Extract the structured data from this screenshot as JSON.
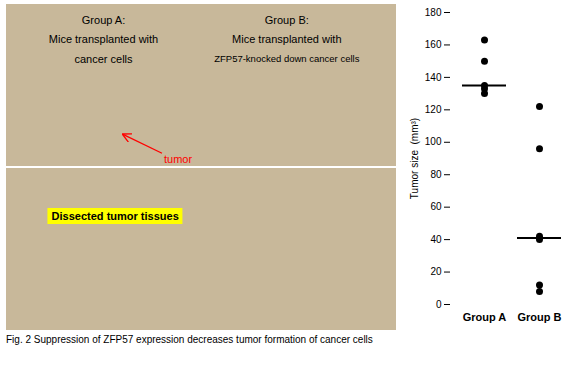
{
  "chart_data": {
    "type": "scatter",
    "categories": [
      "Group A",
      "Group B"
    ],
    "values": [
      [
        163,
        150,
        135,
        133,
        130
      ],
      [
        122,
        96,
        42,
        40,
        12,
        8
      ]
    ],
    "means": [
      135,
      41
    ],
    "color": "#000000",
    "ylabel": "Tumor size  (mm³)",
    "ylim": [
      0,
      180
    ],
    "yticks": [
      0,
      20,
      40,
      60,
      80,
      100,
      120,
      140,
      160,
      180
    ],
    "grid": false,
    "caption": "Fig. 2  Suppression of ZFP57 expression decreases tumor formation of cancer cells",
    "annotations": [
      "Group A:",
      "Mice transplanted with",
      "cancer cells",
      "Group B:",
      "Mice transplanted with",
      "ZFP57-knocked down cancer cells",
      {
        "text": "tumor",
        "color": "red"
      },
      "Dissected tumor tissues"
    ]
  }
}
